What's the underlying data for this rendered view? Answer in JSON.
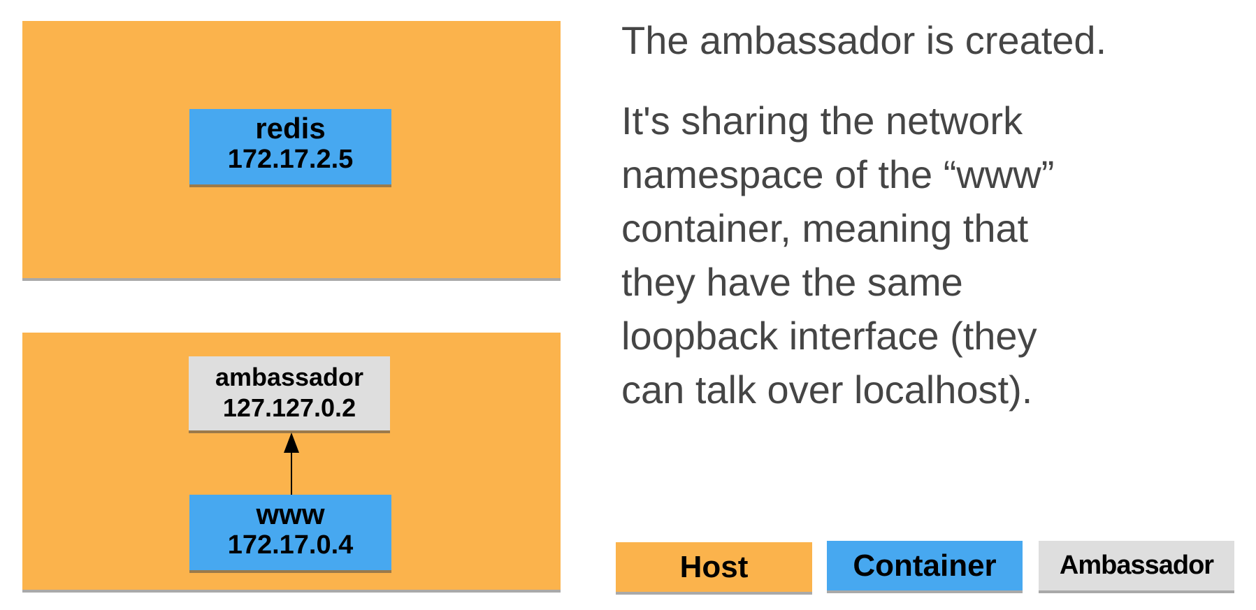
{
  "diagram": {
    "redis": {
      "name": "redis",
      "ip": "172.17.2.5"
    },
    "ambassador": {
      "name": "ambassador",
      "ip": "127.127.0.2"
    },
    "www": {
      "name": "www",
      "ip": "172.17.0.4"
    }
  },
  "description": {
    "heading": "The ambassador is created.",
    "lines": [
      "It's sharing the network",
      "namespace of the “www”",
      "container, meaning that",
      "they have the same",
      "loopback interface (they",
      "can talk over localhost)."
    ]
  },
  "legend": {
    "host": "Host",
    "container": "Container",
    "ambassador": "Ambassador"
  },
  "colors": {
    "host": "#fbb34c",
    "container": "#47a8f0",
    "ambassador": "#dedede",
    "text": "#454545"
  }
}
